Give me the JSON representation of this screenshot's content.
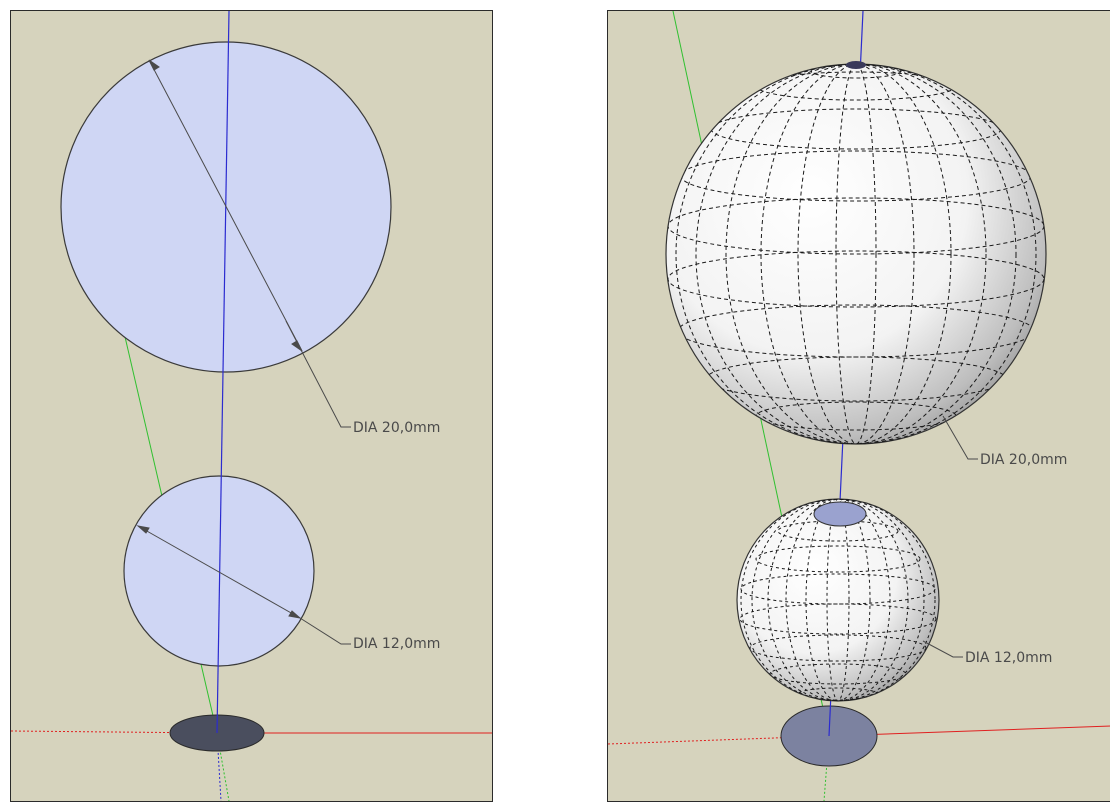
{
  "colors": {
    "viewport_background": "#d6d3bd",
    "sphere_face": "#cfd6f4",
    "blue_axis": "#2b2bd0",
    "green_axis": "#30c030",
    "red_axis": "#e02020",
    "dimension_line": "#4a4a4a",
    "base_disc_dark": "#4a4e5e",
    "base_disc_light": "#7c82a0"
  },
  "left_view": {
    "dimension_large": "DIA 20,0mm",
    "dimension_small": "DIA 12,0mm"
  },
  "right_view": {
    "dimension_large": "DIA 20,0mm",
    "dimension_small": "DIA 12,0mm"
  }
}
